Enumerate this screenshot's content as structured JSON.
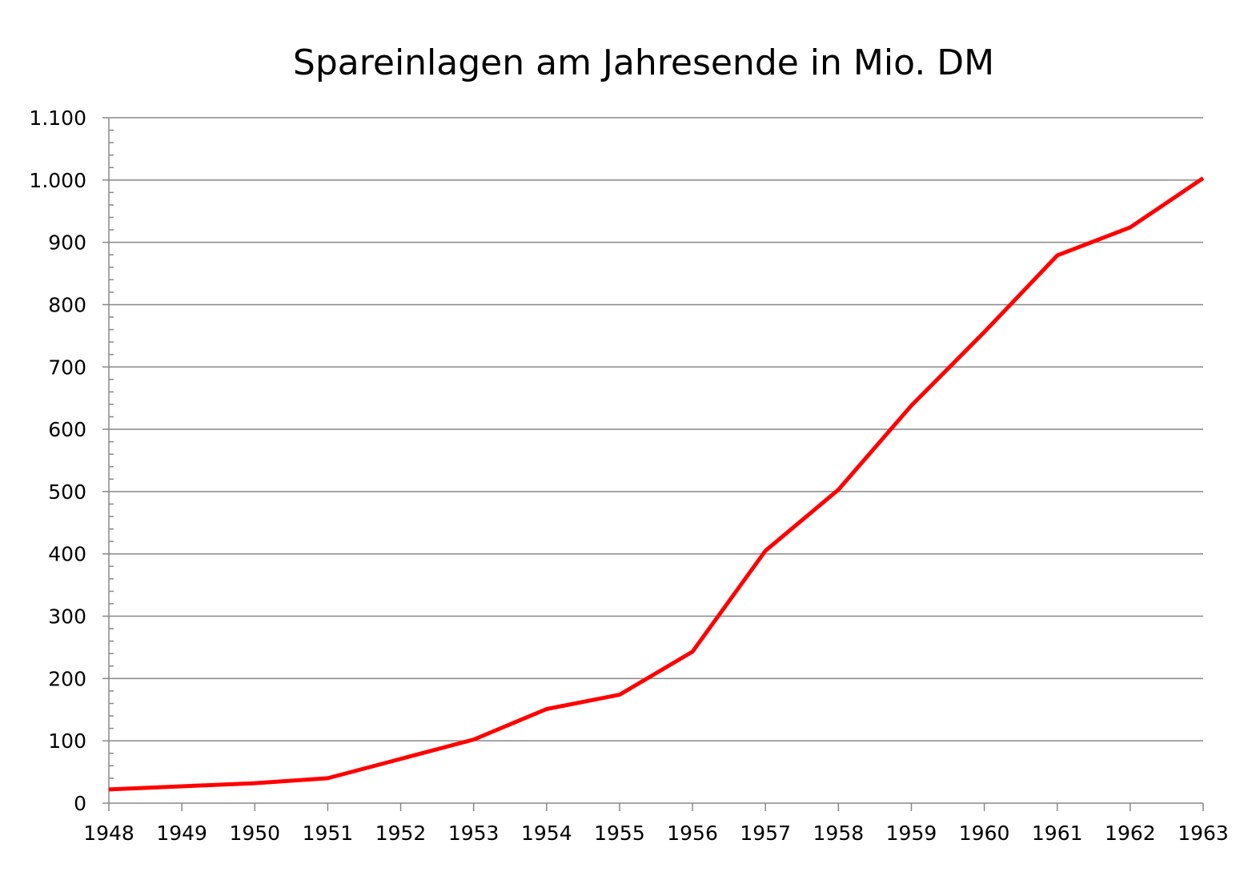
{
  "chart_data": {
    "type": "line",
    "title": "Spareinlagen am Jahresende in Mio. DM",
    "xlabel": "",
    "ylabel": "",
    "x": [
      1948,
      1949,
      1950,
      1951,
      1952,
      1953,
      1954,
      1955,
      1956,
      1957,
      1958,
      1959,
      1960,
      1961,
      1962,
      1963
    ],
    "x_tick_labels": [
      "1948",
      "1949",
      "1950",
      "1951",
      "1952",
      "1953",
      "1954",
      "1955",
      "1956",
      "1957",
      "1958",
      "1959",
      "1960",
      "1961",
      "1962",
      "1963"
    ],
    "series": [
      {
        "name": "Spareinlagen",
        "color": "#ff0000",
        "values": [
          22,
          27,
          32,
          40,
          71,
          102,
          151,
          174,
          243,
          405,
          503,
          638,
          756,
          879,
          924,
          1003
        ]
      }
    ],
    "ylim": [
      0,
      1100
    ],
    "y_ticks": [
      0,
      100,
      200,
      300,
      400,
      500,
      600,
      700,
      800,
      900,
      1000,
      1100
    ],
    "y_tick_labels": [
      "0",
      "100",
      "200",
      "300",
      "400",
      "500",
      "600",
      "700",
      "800",
      "900",
      "1.000",
      "1.100"
    ],
    "grid": "horizontal",
    "legend": "none",
    "colors": {
      "grid": "#888888",
      "line": "#ff0000"
    }
  }
}
